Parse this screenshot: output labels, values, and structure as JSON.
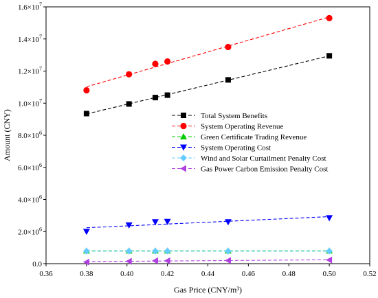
{
  "chart_data": {
    "type": "line",
    "xlabel": "Gas Price (CNY/m³)",
    "ylabel": "Amount (CNY)",
    "xlim": [
      0.36,
      0.52
    ],
    "ylim": [
      0,
      16000000
    ],
    "x_ticks": [
      0.36,
      0.38,
      0.4,
      0.42,
      0.44,
      0.46,
      0.48,
      0.5,
      0.52
    ],
    "x_tick_labels": [
      "0.36",
      "0.38",
      "0.40",
      "0.42",
      "0.44",
      "0.46",
      "0.48",
      "0.50",
      "0.52"
    ],
    "y_ticks": [
      0,
      2000000,
      4000000,
      6000000,
      8000000,
      10000000,
      12000000,
      14000000,
      16000000
    ],
    "y_tick_labels": [
      {
        "mantissa": "0.0",
        "exp": ""
      },
      {
        "mantissa": "2.0×10",
        "exp": "6"
      },
      {
        "mantissa": "4.0×10",
        "exp": "6"
      },
      {
        "mantissa": "6.0×10",
        "exp": "6"
      },
      {
        "mantissa": "8.0×10",
        "exp": "6"
      },
      {
        "mantissa": "1.0×10",
        "exp": "7"
      },
      {
        "mantissa": "1.2×10",
        "exp": "7"
      },
      {
        "mantissa": "1.4×10",
        "exp": "7"
      },
      {
        "mantissa": "1.6×10",
        "exp": "7"
      }
    ],
    "grid": false,
    "legend_position": "center-right",
    "x": [
      0.38,
      0.401,
      0.414,
      0.42,
      0.45,
      0.5
    ],
    "series": [
      {
        "name": "Total System Benefits",
        "color": "#000000",
        "marker": "square",
        "values": [
          9350000,
          9950000,
          10350000,
          10500000,
          11450000,
          12950000
        ]
      },
      {
        "name": "System Operating Revenue",
        "color": "#ff0000",
        "marker": "circle",
        "values": [
          10800000,
          11800000,
          12450000,
          12600000,
          13500000,
          15300000
        ]
      },
      {
        "name": "Green Certificate Trading Revenue",
        "color": "#00cc00",
        "marker": "triangle-up",
        "values": [
          800000,
          800000,
          800000,
          800000,
          800000,
          800000
        ]
      },
      {
        "name": "System Operating Cost",
        "color": "#0000ff",
        "marker": "triangle-down",
        "values": [
          2000000,
          2400000,
          2600000,
          2620000,
          2600000,
          2850000
        ]
      },
      {
        "name": "Wind and Solar Curtailment Penalty Cost",
        "color": "#66ccff",
        "marker": "diamond",
        "values": [
          780000,
          780000,
          780000,
          780000,
          780000,
          780000
        ]
      },
      {
        "name": "Gas Power Carbon Emission Penalty Cost",
        "color": "#b040e0",
        "marker": "triangle-left",
        "values": [
          100000,
          150000,
          180000,
          180000,
          200000,
          230000
        ]
      }
    ],
    "trendline_style": "dashed"
  }
}
